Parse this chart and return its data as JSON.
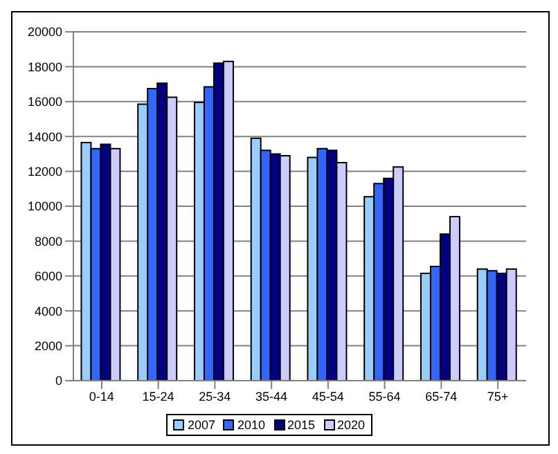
{
  "chart_data": {
    "type": "bar",
    "categories": [
      "0-14",
      "15-24",
      "25-34",
      "35-44",
      "45-54",
      "55-64",
      "65-74",
      "75+"
    ],
    "series": [
      {
        "name": "2007",
        "color": "#99ccff",
        "values": [
          13650,
          15850,
          15950,
          13900,
          12800,
          10550,
          6150,
          6400
        ]
      },
      {
        "name": "2010",
        "color": "#3366ff",
        "values": [
          13300,
          16750,
          16850,
          13200,
          13300,
          11300,
          6550,
          6300
        ]
      },
      {
        "name": "2015",
        "color": "#000080",
        "values": [
          13550,
          17050,
          18200,
          13000,
          13200,
          11600,
          8400,
          6150
        ]
      },
      {
        "name": "2020",
        "color": "#ccccff",
        "values": [
          13300,
          16250,
          18300,
          12900,
          12500,
          12250,
          9400,
          6400
        ]
      }
    ],
    "ylim": [
      0,
      20000
    ],
    "yticks": [
      0,
      2000,
      4000,
      6000,
      8000,
      10000,
      12000,
      14000,
      16000,
      18000,
      20000
    ],
    "grid": "y",
    "legend": "bottom"
  }
}
